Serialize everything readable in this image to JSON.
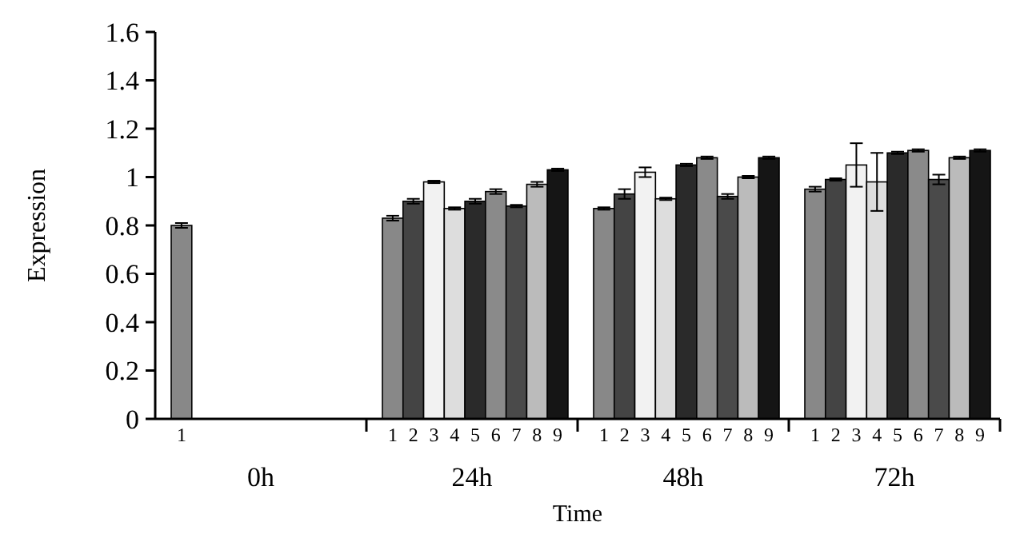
{
  "chart_data": {
    "type": "bar",
    "xlabel": "Time",
    "ylabel": "Expression",
    "categories": [
      "0h",
      "24h",
      "48h",
      "72h"
    ],
    "ylim": [
      0,
      1.6
    ],
    "yticks": [
      0,
      0.2,
      0.4,
      0.6,
      0.8,
      1,
      1.2,
      1.4,
      1.6
    ],
    "grid": false,
    "legend": false,
    "series": [
      {
        "name": "1",
        "color": "#888888",
        "values": [
          0.8,
          0.83,
          0.87,
          0.95
        ],
        "errors": [
          0.01,
          0.01,
          0.005,
          0.01
        ]
      },
      {
        "name": "2",
        "color": "#444444",
        "values": [
          null,
          0.9,
          0.93,
          0.99
        ],
        "errors": [
          null,
          0.01,
          0.02,
          0.005
        ]
      },
      {
        "name": "3",
        "color": "#f2f2f2",
        "values": [
          null,
          0.98,
          1.02,
          1.05
        ],
        "errors": [
          null,
          0.005,
          0.02,
          0.09
        ]
      },
      {
        "name": "4",
        "color": "#dddddd",
        "values": [
          null,
          0.87,
          0.91,
          0.98
        ],
        "errors": [
          null,
          0.005,
          0.005,
          0.12
        ]
      },
      {
        "name": "5",
        "color": "#2a2a2a",
        "values": [
          null,
          0.9,
          1.05,
          1.1
        ],
        "errors": [
          null,
          0.01,
          0.005,
          0.005
        ]
      },
      {
        "name": "6",
        "color": "#8a8a8a",
        "values": [
          null,
          0.94,
          1.08,
          1.11
        ],
        "errors": [
          null,
          0.01,
          0.005,
          0.005
        ]
      },
      {
        "name": "7",
        "color": "#4a4a4a",
        "values": [
          null,
          0.88,
          0.92,
          0.99
        ],
        "errors": [
          null,
          0.005,
          0.01,
          0.02
        ]
      },
      {
        "name": "8",
        "color": "#bbbbbb",
        "values": [
          null,
          0.97,
          1,
          1.08
        ],
        "errors": [
          null,
          0.01,
          0.005,
          0.005
        ]
      },
      {
        "name": "9",
        "color": "#151515",
        "values": [
          null,
          1.03,
          1.08,
          1.11
        ],
        "errors": [
          null,
          0.005,
          0.005,
          0.005
        ]
      }
    ]
  }
}
